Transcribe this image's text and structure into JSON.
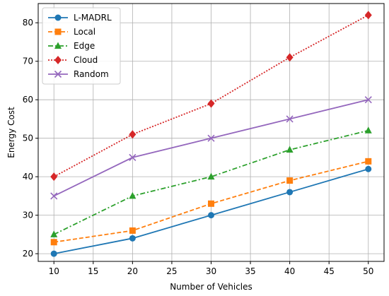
{
  "chart_data": {
    "type": "line",
    "title": "",
    "xlabel": "Number of Vehicles",
    "ylabel": "Energy Cost",
    "x": [
      10,
      20,
      30,
      40,
      50
    ],
    "xlim": [
      8,
      52
    ],
    "ylim": [
      18,
      85
    ],
    "xticks": [
      10,
      15,
      20,
      25,
      30,
      35,
      40,
      45,
      50
    ],
    "yticks": [
      20,
      30,
      40,
      50,
      60,
      70,
      80
    ],
    "grid": true,
    "legend_position": "top-left",
    "series": [
      {
        "name": "L-MADRL",
        "values": [
          20,
          24,
          30,
          36,
          42
        ],
        "color": "#1f77b4",
        "linestyle": "solid",
        "marker": "circle"
      },
      {
        "name": "Local",
        "values": [
          23,
          26,
          33,
          39,
          44
        ],
        "color": "#ff7f0e",
        "linestyle": "dashed",
        "marker": "square"
      },
      {
        "name": "Edge",
        "values": [
          25,
          35,
          40,
          47,
          52
        ],
        "color": "#2ca02c",
        "linestyle": "dashdot",
        "marker": "triangle"
      },
      {
        "name": "Cloud",
        "values": [
          40,
          51,
          59,
          71,
          82
        ],
        "color": "#d62728",
        "linestyle": "dotted",
        "marker": "diamond"
      },
      {
        "name": "Random",
        "values": [
          35,
          45,
          50,
          55,
          60
        ],
        "color": "#9467bd",
        "linestyle": "solid",
        "marker": "x"
      }
    ]
  }
}
